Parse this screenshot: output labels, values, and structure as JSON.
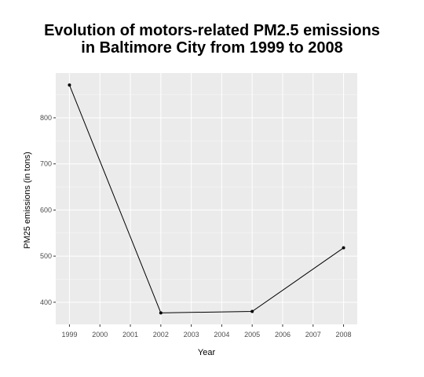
{
  "chart_data": {
    "type": "line",
    "title_lines": [
      "Evolution of motors-related PM2.5 emissions",
      "in Baltimore City from 1999 to 2008"
    ],
    "xlabel": "Year",
    "ylabel": "PM25 emissions (in tons)",
    "x_ticks": [
      1999,
      2000,
      2001,
      2002,
      2003,
      2004,
      2005,
      2006,
      2007,
      2008
    ],
    "y_ticks": [
      400,
      500,
      600,
      700,
      800
    ],
    "xlim": [
      1998.55,
      2008.45
    ],
    "ylim": [
      352,
      897
    ],
    "grid": true,
    "points": [
      {
        "x": 1999,
        "y": 871
      },
      {
        "x": 2002,
        "y": 377
      },
      {
        "x": 2005,
        "y": 380
      },
      {
        "x": 2008,
        "y": 518
      }
    ]
  },
  "colors": {
    "panel_background": "#ebebeb",
    "grid_major": "#ffffff",
    "line": "#000000",
    "tick_text": "#4d4d4d",
    "label_text": "#000000"
  }
}
